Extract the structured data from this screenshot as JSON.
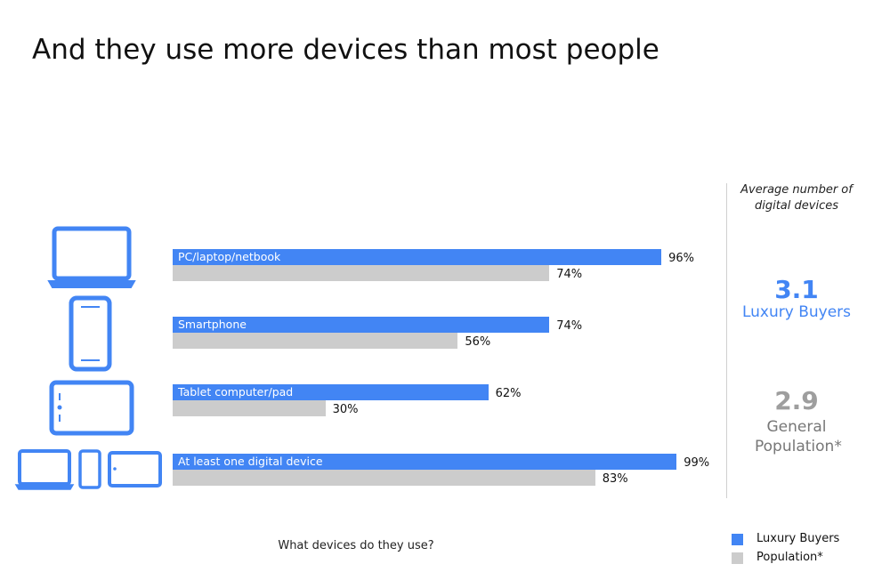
{
  "title": "And they use more devices than most people",
  "chart_data": {
    "type": "bar",
    "orientation": "horizontal",
    "categories": [
      "PC/laptop/netbook",
      "Smartphone",
      "Tablet computer/pad",
      "At least one digital device"
    ],
    "series": [
      {
        "name": "Luxury Buyers",
        "values": [
          96,
          74,
          62,
          99
        ],
        "labels": [
          "96%",
          "74%",
          "62%",
          "99%"
        ]
      },
      {
        "name": "Population*",
        "values": [
          74,
          56,
          30,
          83
        ],
        "labels": [
          "74%",
          "56%",
          "30%",
          "83%"
        ]
      }
    ],
    "xlabel": "What devices do they use?",
    "ylabel": "",
    "xlim": [
      0,
      100
    ],
    "grid": false,
    "legend": "bottom-right",
    "colors": {
      "luxury": "#4285f4",
      "population": "#cccccc"
    }
  },
  "sidebar": {
    "heading": "Average number of digital devices",
    "luxury_value": "3.1",
    "luxury_label": "Luxury Buyers",
    "population_value": "2.9",
    "population_label": "General Population*"
  },
  "legend": {
    "luxury": "Luxury Buyers",
    "population": "Population*"
  },
  "icons": [
    "laptop-icon",
    "smartphone-icon",
    "tablet-icon",
    "all-devices-icon"
  ]
}
